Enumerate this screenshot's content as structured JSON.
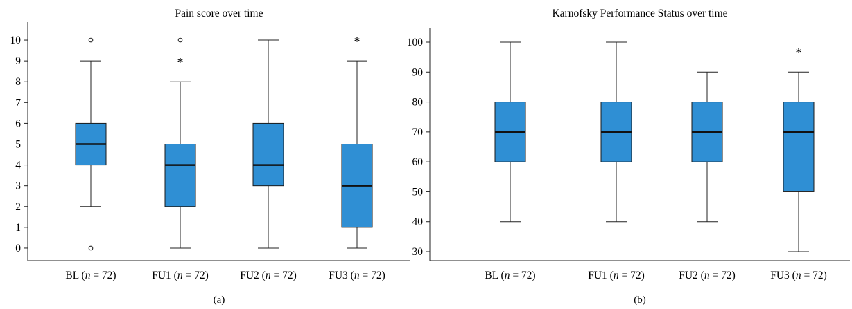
{
  "chart_data": [
    {
      "type": "box",
      "panel_label": "(a)",
      "title": "Pain score over time",
      "xlabel": "",
      "ylabel": "",
      "ylim": [
        -0.6,
        10.6
      ],
      "yticks": [
        0,
        1,
        2,
        3,
        4,
        5,
        6,
        7,
        8,
        9,
        10
      ],
      "box_color": "#2f8fd4",
      "categories": [
        {
          "label": "BL",
          "n_text": "n",
          "eq_text": " = 72"
        },
        {
          "label": "FU1",
          "n_text": "n",
          "eq_text": " = 72"
        },
        {
          "label": "FU2",
          "n_text": "n",
          "eq_text": " = 72"
        },
        {
          "label": "FU3",
          "n_text": "n",
          "eq_text": " = 72"
        }
      ],
      "boxes": [
        {
          "category": "BL",
          "whisker_low": 2,
          "q1": 4,
          "median": 5,
          "q3": 6,
          "whisker_high": 9,
          "outliers": [
            0,
            10
          ],
          "extremes": []
        },
        {
          "category": "FU1",
          "whisker_low": 0,
          "q1": 2,
          "median": 4,
          "q3": 5,
          "whisker_high": 8,
          "outliers": [
            10
          ],
          "extremes": [
            9
          ]
        },
        {
          "category": "FU2",
          "whisker_low": 0,
          "q1": 3,
          "median": 4,
          "q3": 6,
          "whisker_high": 10,
          "outliers": [],
          "extremes": []
        },
        {
          "category": "FU3",
          "whisker_low": 0,
          "q1": 1,
          "median": 3,
          "q3": 5,
          "whisker_high": 9,
          "outliers": [],
          "extremes": [
            10
          ]
        }
      ]
    },
    {
      "type": "box",
      "panel_label": "(b)",
      "title": "Karnofsky Performance Status over time",
      "xlabel": "",
      "ylabel": "",
      "ylim": [
        27,
        103
      ],
      "yticks": [
        30,
        40,
        50,
        60,
        70,
        80,
        90,
        100
      ],
      "box_color": "#2f8fd4",
      "categories": [
        {
          "label": "BL",
          "n_text": "n",
          "eq_text": " = 72"
        },
        {
          "label": "FU1",
          "n_text": "n",
          "eq_text": " = 72"
        },
        {
          "label": "FU2",
          "n_text": "n",
          "eq_text": " = 72"
        },
        {
          "label": "FU3",
          "n_text": "n",
          "eq_text": " = 72"
        }
      ],
      "boxes": [
        {
          "category": "BL",
          "whisker_low": 40,
          "q1": 60,
          "median": 70,
          "q3": 80,
          "whisker_high": 100,
          "outliers": [],
          "extremes": []
        },
        {
          "category": "FU1",
          "whisker_low": 40,
          "q1": 60,
          "median": 70,
          "q3": 80,
          "whisker_high": 100,
          "outliers": [],
          "extremes": []
        },
        {
          "category": "FU2",
          "whisker_low": 40,
          "q1": 60,
          "median": 70,
          "q3": 80,
          "whisker_high": 90,
          "outliers": [],
          "extremes": []
        },
        {
          "category": "FU3",
          "whisker_low": 30,
          "q1": 50,
          "median": 70,
          "q3": 80,
          "whisker_high": 90,
          "outliers": [],
          "extremes": [
            97
          ]
        }
      ]
    }
  ]
}
